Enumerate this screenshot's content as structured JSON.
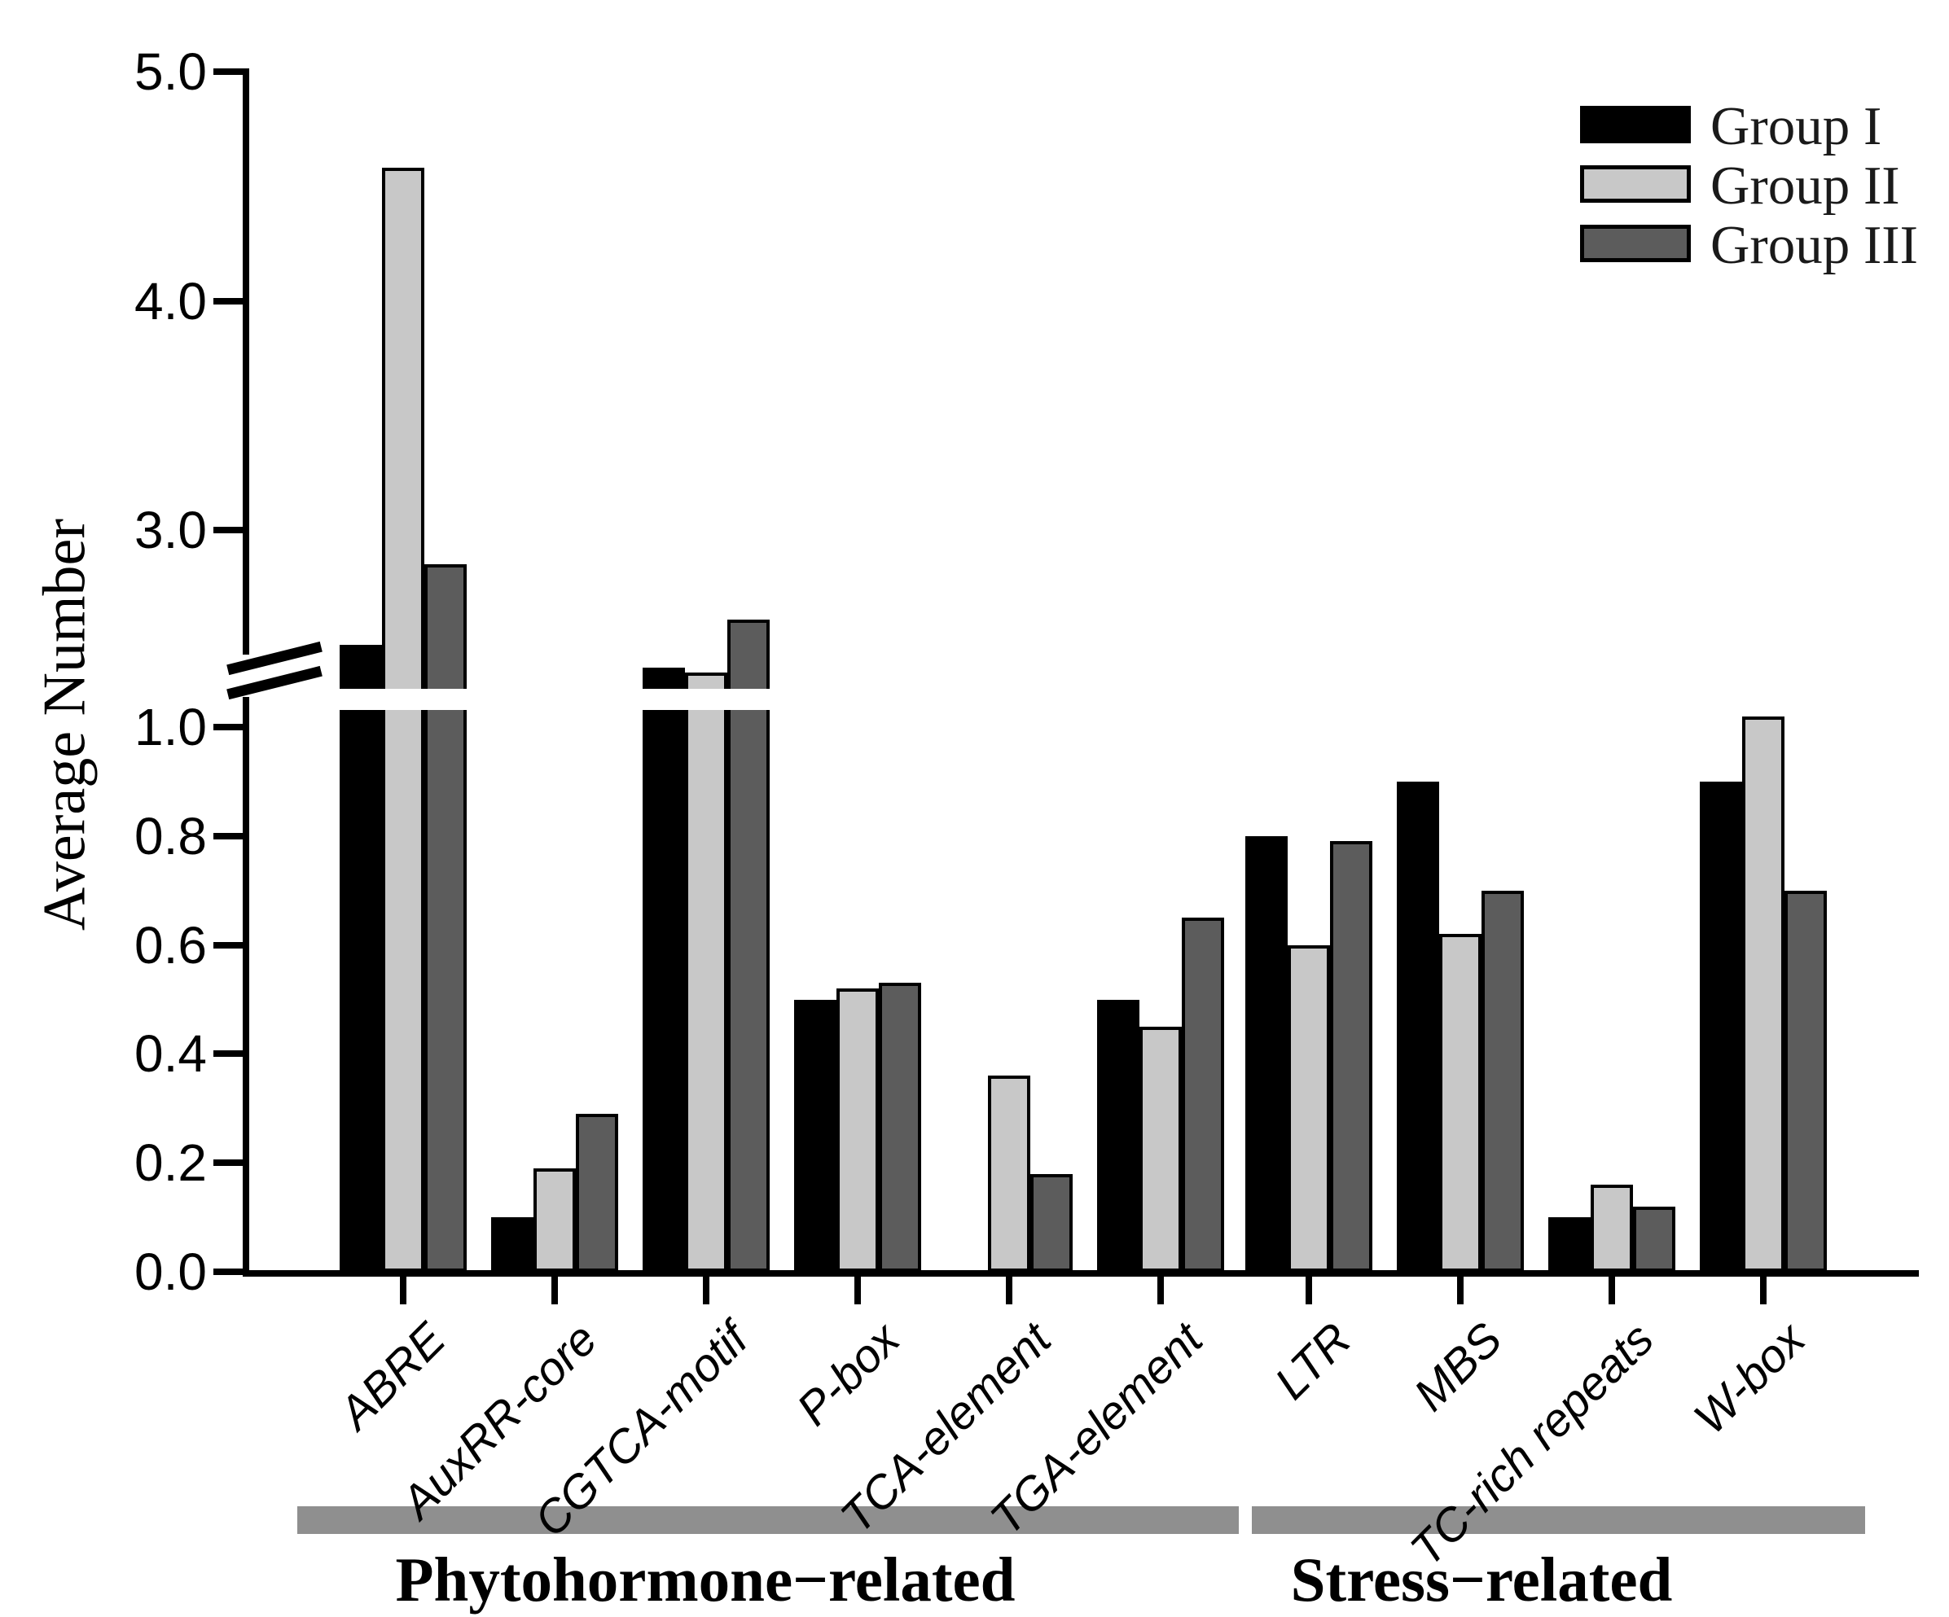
{
  "chart_data": {
    "type": "bar",
    "title": "",
    "ylabel": "Average Number",
    "xlabel": "",
    "grid": false,
    "legend_position": "top-right",
    "categories": [
      "ABRE",
      "AuxRR-core",
      "CGTCA-motif",
      "P-box",
      "TCA-element",
      "TGA-element",
      "LTR",
      "MBS",
      "TC-rich repeats",
      "W-box"
    ],
    "series": [
      {
        "name": "Group I",
        "color": "#000000",
        "values": [
          2.5,
          0.1,
          2.4,
          0.5,
          null,
          0.5,
          0.8,
          0.9,
          0.1,
          0.9
        ]
      },
      {
        "name": "Group II",
        "color": "#c8c8c8",
        "values": [
          4.58,
          0.19,
          2.38,
          0.52,
          0.36,
          0.45,
          0.6,
          0.62,
          0.16,
          1.02
        ]
      },
      {
        "name": "Group III",
        "color": "#5c5c5c",
        "values": [
          2.85,
          0.29,
          2.61,
          0.53,
          0.18,
          0.65,
          0.79,
          0.7,
          0.12,
          0.7
        ]
      }
    ],
    "y_axis": {
      "ticks": [
        {
          "label": "5.0",
          "value": 5.0
        },
        {
          "label": "4.0",
          "value": 4.0
        },
        {
          "label": "3.0",
          "value": 3.0
        },
        {
          "label": "1.0",
          "value": 1.0
        },
        {
          "label": "0.8",
          "value": 0.8
        },
        {
          "label": "0.6",
          "value": 0.6
        },
        {
          "label": "0.4",
          "value": 0.4
        },
        {
          "label": "0.2",
          "value": 0.2
        },
        {
          "label": "0.0",
          "value": 0.0
        }
      ],
      "axis_break": {
        "lower_max": 1.06,
        "upper_min": 2.42
      },
      "lower_range": [
        0.0,
        1.06
      ],
      "upper_range": [
        2.42,
        5.0
      ]
    },
    "group_sections": [
      {
        "label": "Phytohormone−related",
        "categories": [
          "ABRE",
          "AuxRR-core",
          "CGTCA-motif",
          "P-box",
          "TCA-element",
          "TGA-element"
        ]
      },
      {
        "label": "Stress−related",
        "categories": [
          "LTR",
          "MBS",
          "TC-rich repeats",
          "W-box"
        ]
      }
    ],
    "colors": {
      "bar_outline": "#000000",
      "section_bar": "#8f8f8f",
      "axis": "#000000"
    }
  }
}
